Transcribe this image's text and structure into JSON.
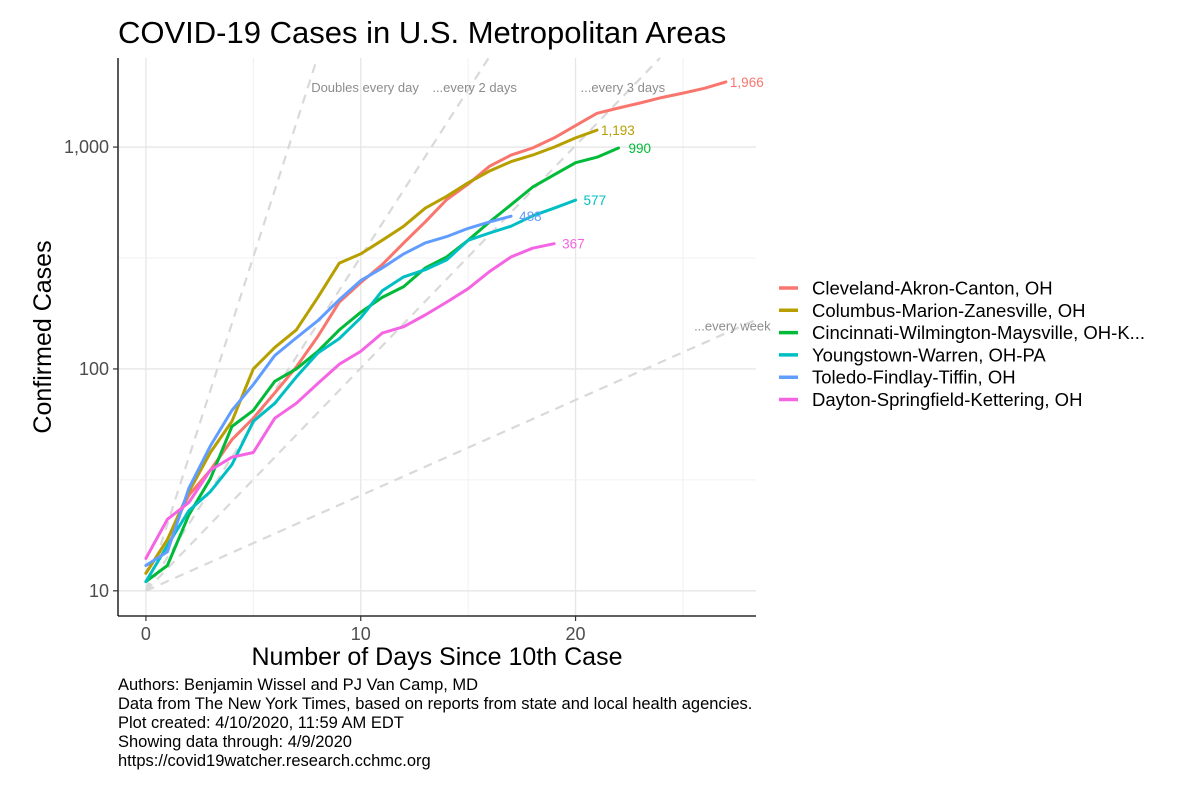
{
  "chart_data": {
    "type": "line",
    "title": "COVID-19 Cases in U.S. Metropolitan Areas",
    "xlabel": "Number of Days Since 10th Case",
    "ylabel": "Confirmed Cases",
    "x_scale": "linear",
    "y_scale": "log10",
    "xlim": [
      -1.3,
      28.4
    ],
    "ylim": [
      7.7,
      2520
    ],
    "x_ticks": [
      0,
      10,
      20
    ],
    "x_tick_labels": [
      "0",
      "10",
      "20"
    ],
    "y_ticks": [
      10,
      100,
      1000
    ],
    "y_tick_labels": [
      "10",
      "100",
      "1,000"
    ],
    "grid": true,
    "legend_position": "right",
    "reference_lines": [
      {
        "label": "Doubles every day",
        "doubling_days": 1,
        "label_x": 10.2,
        "label_y": 1850
      },
      {
        "label": "...every 2 days",
        "doubling_days": 2,
        "label_x": 15.3,
        "label_y": 1850
      },
      {
        "label": "...every 3 days",
        "doubling_days": 3,
        "label_x": 22.2,
        "label_y": 1850
      },
      {
        "label": "...every week",
        "doubling_days": 7,
        "label_x": 27.3,
        "label_y": 155
      }
    ],
    "series": [
      {
        "name": "Cleveland-Akron-Canton, OH",
        "color": "#F8766D",
        "end_label": "1,966",
        "x": [
          0,
          1,
          2,
          3,
          4,
          5,
          6,
          7,
          8,
          9,
          10,
          11,
          12,
          13,
          14,
          15,
          16,
          17,
          18,
          19,
          20,
          21,
          22,
          23,
          24,
          25,
          26,
          27
        ],
        "y": [
          12,
          17,
          27,
          35,
          48,
          60,
          78,
          102,
          140,
          200,
          245,
          295,
          370,
          460,
          580,
          680,
          820,
          920,
          990,
          1100,
          1250,
          1420,
          1500,
          1580,
          1670,
          1750,
          1840,
          1966
        ]
      },
      {
        "name": "Columbus-Marion-Zanesville, OH",
        "color": "#B79F00",
        "end_label": "1,193",
        "x": [
          0,
          1,
          2,
          3,
          4,
          5,
          6,
          7,
          8,
          9,
          10,
          11,
          12,
          13,
          14,
          15,
          16,
          17,
          18,
          19,
          20,
          21
        ],
        "y": [
          12,
          17,
          28,
          42,
          58,
          100,
          125,
          150,
          210,
          300,
          330,
          380,
          440,
          530,
          600,
          690,
          780,
          860,
          920,
          1000,
          1100,
          1193
        ]
      },
      {
        "name": "Cincinnati-Wilmington-Maysville, OH-K...",
        "color": "#00BA38",
        "end_label": "990",
        "x": [
          0,
          1,
          2,
          3,
          4,
          5,
          6,
          7,
          8,
          9,
          10,
          11,
          12,
          13,
          14,
          15,
          16,
          17,
          18,
          19,
          20,
          21,
          22
        ],
        "y": [
          11,
          13,
          22,
          32,
          55,
          65,
          88,
          100,
          120,
          150,
          180,
          210,
          235,
          285,
          320,
          380,
          460,
          550,
          660,
          750,
          850,
          900,
          990
        ]
      },
      {
        "name": "Youngstown-Warren, OH-PA",
        "color": "#00BFC4",
        "end_label": "577",
        "x": [
          0,
          1,
          2,
          3,
          4,
          5,
          6,
          7,
          8,
          9,
          10,
          11,
          12,
          13,
          14,
          15,
          16,
          17,
          18,
          19,
          20
        ],
        "y": [
          11,
          16,
          23,
          28,
          37,
          58,
          70,
          92,
          118,
          137,
          170,
          225,
          260,
          280,
          310,
          380,
          410,
          440,
          490,
          530,
          577
        ]
      },
      {
        "name": "Toledo-Findlay-Tiffin, OH",
        "color": "#619CFF",
        "end_label": "488",
        "x": [
          0,
          1,
          2,
          3,
          4,
          5,
          6,
          7,
          8,
          9,
          10,
          11,
          12,
          13,
          14,
          15,
          16,
          17
        ],
        "y": [
          13,
          15,
          29,
          45,
          65,
          85,
          115,
          138,
          165,
          205,
          250,
          285,
          330,
          370,
          395,
          430,
          460,
          488
        ]
      },
      {
        "name": "Dayton-Springfield-Kettering, OH",
        "color": "#F564E3",
        "end_label": "367",
        "x": [
          0,
          1,
          2,
          3,
          4,
          5,
          6,
          7,
          8,
          9,
          10,
          11,
          12,
          13,
          14,
          15,
          16,
          17,
          18,
          19
        ],
        "y": [
          14,
          21,
          25,
          35,
          40,
          42,
          60,
          70,
          86,
          105,
          120,
          145,
          155,
          175,
          200,
          230,
          275,
          320,
          350,
          367
        ]
      }
    ]
  },
  "caption": {
    "lines": [
      "Authors: Benjamin Wissel and PJ Van Camp, MD",
      "Data from The New York Times, based on reports from state and local health agencies.",
      "Plot created: 4/10/2020, 11:59 AM EDT",
      "Showing data through: 4/9/2020",
      "https://covid19watcher.research.cchmc.org"
    ]
  }
}
